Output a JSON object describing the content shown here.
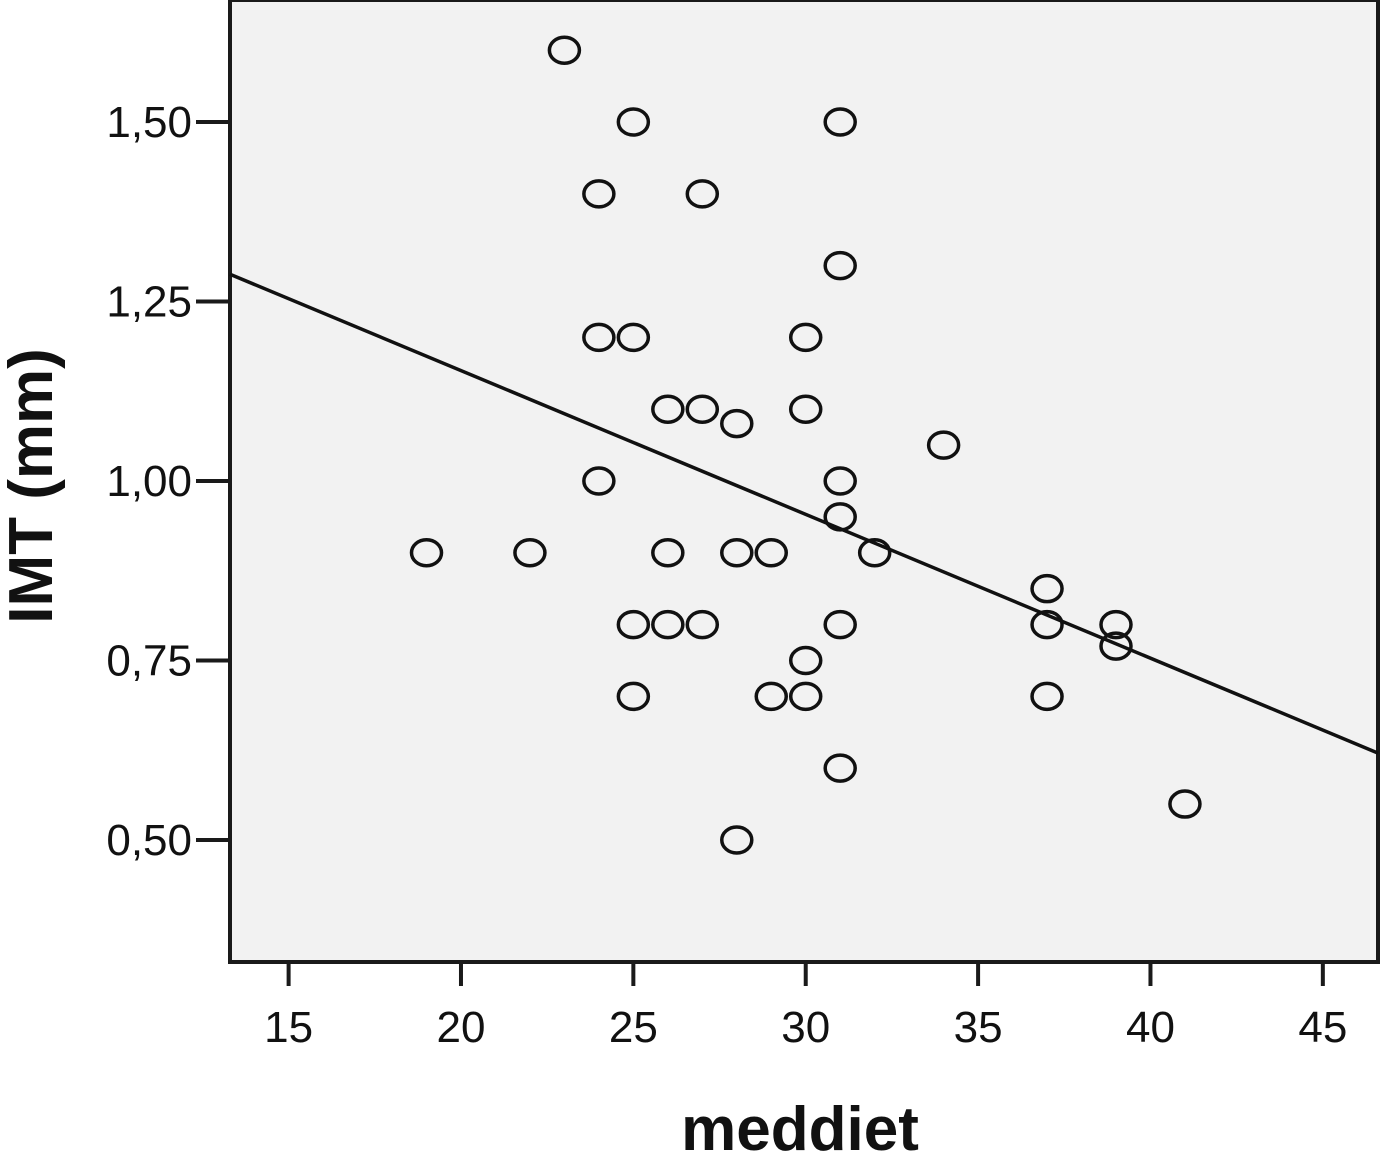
{
  "chart_data": {
    "type": "scatter",
    "xlabel": "meddiet",
    "ylabel": "IMT (mm)",
    "xlim": [
      13.3,
      46.6
    ],
    "ylim": [
      0.33,
      1.67
    ],
    "x_ticks": [
      15,
      20,
      25,
      30,
      35,
      40,
      45
    ],
    "x_tick_labels": [
      "15",
      "20",
      "25",
      "30",
      "35",
      "40",
      "45"
    ],
    "y_ticks": [
      0.5,
      0.75,
      1.0,
      1.25,
      1.5
    ],
    "y_tick_labels": [
      "0,50",
      "0,75",
      "1,00",
      "1,25",
      "1,50"
    ],
    "grid": false,
    "colors": {
      "plot_background": "#f2f2f2",
      "frame": "#1a1a1a",
      "marker": "#111111",
      "line": "#111111"
    },
    "points": [
      {
        "x": 23,
        "y": 1.6
      },
      {
        "x": 25,
        "y": 1.5
      },
      {
        "x": 31,
        "y": 1.5
      },
      {
        "x": 24,
        "y": 1.4
      },
      {
        "x": 27,
        "y": 1.4
      },
      {
        "x": 31,
        "y": 1.3
      },
      {
        "x": 24,
        "y": 1.2
      },
      {
        "x": 25,
        "y": 1.2
      },
      {
        "x": 30,
        "y": 1.2
      },
      {
        "x": 26,
        "y": 1.1
      },
      {
        "x": 27,
        "y": 1.1
      },
      {
        "x": 30,
        "y": 1.1
      },
      {
        "x": 28,
        "y": 1.08
      },
      {
        "x": 34,
        "y": 1.05
      },
      {
        "x": 24,
        "y": 1.0
      },
      {
        "x": 31,
        "y": 1.0
      },
      {
        "x": 31,
        "y": 0.95
      },
      {
        "x": 19,
        "y": 0.9
      },
      {
        "x": 22,
        "y": 0.9
      },
      {
        "x": 26,
        "y": 0.9
      },
      {
        "x": 28,
        "y": 0.9
      },
      {
        "x": 29,
        "y": 0.9
      },
      {
        "x": 32,
        "y": 0.9
      },
      {
        "x": 37,
        "y": 0.85
      },
      {
        "x": 25,
        "y": 0.8
      },
      {
        "x": 26,
        "y": 0.8
      },
      {
        "x": 27,
        "y": 0.8
      },
      {
        "x": 31,
        "y": 0.8
      },
      {
        "x": 37,
        "y": 0.8
      },
      {
        "x": 39,
        "y": 0.8
      },
      {
        "x": 39,
        "y": 0.77
      },
      {
        "x": 30,
        "y": 0.75
      },
      {
        "x": 25,
        "y": 0.7
      },
      {
        "x": 29,
        "y": 0.7
      },
      {
        "x": 30,
        "y": 0.7
      },
      {
        "x": 37,
        "y": 0.7
      },
      {
        "x": 31,
        "y": 0.6
      },
      {
        "x": 41,
        "y": 0.55
      },
      {
        "x": 28,
        "y": 0.5
      }
    ],
    "fit_line": {
      "x": [
        13.3,
        46.6
      ],
      "y": [
        1.288,
        0.621
      ]
    }
  }
}
